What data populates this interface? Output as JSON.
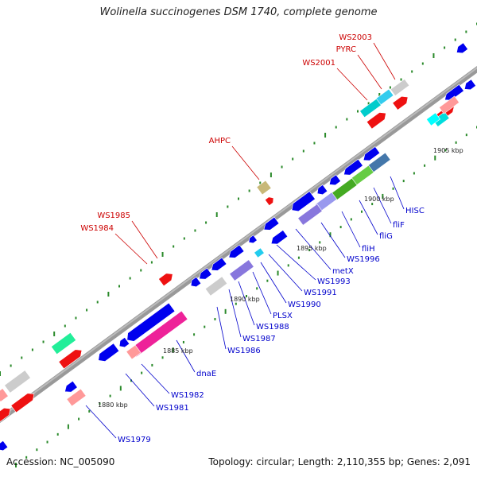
{
  "title": "Wolinella succinogenes DSM 1740, complete genome",
  "footer": {
    "accession": "Accession: NC_005090",
    "stats": "Topology: circular; Length: 2,110,355 bp; Genes: 2,091"
  },
  "colors": {
    "backbone": "#888888",
    "forward_label": "#cc0000",
    "reverse_label": "#0000cc",
    "tick": "#2a8a2a"
  },
  "scale_labels": [
    "1880 kbp",
    "1885 kbp",
    "1890 kbp",
    "1895 kbp",
    "1900 kbp",
    "1905 kbp"
  ],
  "gene_labels_top": [
    "WS2003",
    "PYRC",
    "WS2001",
    "AHPC",
    "WS1985",
    "WS1984"
  ],
  "gene_labels_bottom": [
    "HISC",
    "fliF",
    "fliG",
    "fliH",
    "WS1996",
    "metX",
    "WS1993",
    "WS1991",
    "WS1990",
    "PLSX",
    "WS1988",
    "WS1987",
    "WS1986",
    "dnaE",
    "WS1982",
    "WS1981",
    "WS1979"
  ]
}
